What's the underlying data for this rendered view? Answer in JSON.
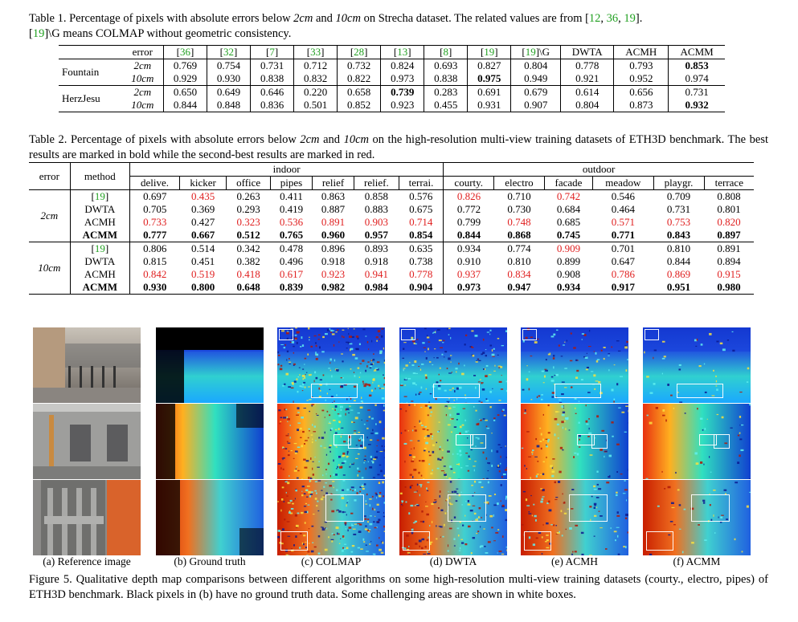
{
  "table1": {
    "caption_prefix": "Table 1. Percentage of pixels with absolute errors below ",
    "caption_u1": "2cm",
    "caption_and": " and ",
    "caption_u2": "10cm",
    "caption_mid": " on Strecha dataset. The related values are from [",
    "cite_a": "12",
    "cite_b": "36",
    "cite_c": "19",
    "caption_end": "].",
    "caption_line2_cite": "19",
    "caption_line2": "]\\G means COLMAP without geometric consistency.",
    "header_error": "error",
    "headers": [
      "36",
      "32",
      "7",
      "33",
      "28",
      "13",
      "8",
      "19",
      "19\\G",
      "DWTA",
      "ACMH",
      "ACMM"
    ],
    "rows": [
      {
        "dataset": "Fountain",
        "error": "2cm",
        "values": [
          "0.769",
          "0.754",
          "0.731",
          "0.712",
          "0.732",
          "0.824",
          "0.693",
          "0.827",
          "0.804",
          "0.778",
          "0.793",
          "0.853"
        ]
      },
      {
        "dataset": "",
        "error": "10cm",
        "values": [
          "0.929",
          "0.930",
          "0.838",
          "0.832",
          "0.822",
          "0.973",
          "0.838",
          "0.975",
          "0.949",
          "0.921",
          "0.952",
          "0.974"
        ]
      },
      {
        "dataset": "HerzJesu",
        "error": "2cm",
        "values": [
          "0.650",
          "0.649",
          "0.646",
          "0.220",
          "0.658",
          "0.739",
          "0.283",
          "0.691",
          "0.679",
          "0.614",
          "0.656",
          "0.731"
        ]
      },
      {
        "dataset": "",
        "error": "10cm",
        "values": [
          "0.844",
          "0.848",
          "0.836",
          "0.501",
          "0.852",
          "0.923",
          "0.455",
          "0.931",
          "0.907",
          "0.804",
          "0.873",
          "0.932"
        ]
      }
    ]
  },
  "table2": {
    "caption_a": "Table 2. Percentage of pixels with absolute errors below ",
    "caption_u1": "2cm",
    "caption_and": " and ",
    "caption_u2": "10cm",
    "caption_b": " on the high-resolution multi-view training datasets of ETH3D benchmark. The best results are marked in bold while the second-best results are marked in red.",
    "col_error": "error",
    "col_method": "method",
    "group_indoor": "indoor",
    "group_outdoor": "outdoor",
    "datasets": [
      "delive.",
      "kicker",
      "office",
      "pipes",
      "relief",
      "relief.",
      "terrai.",
      "courty.",
      "electro",
      "facade",
      "meadow",
      "playgr.",
      "terrace"
    ],
    "groups": [
      {
        "error": "2cm",
        "rows": [
          {
            "method": "[19]",
            "values": [
              "0.697",
              "0.435",
              "0.263",
              "0.411",
              "0.863",
              "0.858",
              "0.576",
              "0.826",
              "0.710",
              "0.742",
              "0.546",
              "0.709",
              "0.808"
            ]
          },
          {
            "method": "DWTA",
            "values": [
              "0.705",
              "0.369",
              "0.293",
              "0.419",
              "0.887",
              "0.883",
              "0.675",
              "0.772",
              "0.730",
              "0.684",
              "0.464",
              "0.731",
              "0.801"
            ]
          },
          {
            "method": "ACMH",
            "values": [
              "0.733",
              "0.427",
              "0.323",
              "0.536",
              "0.891",
              "0.903",
              "0.714",
              "0.799",
              "0.748",
              "0.685",
              "0.571",
              "0.753",
              "0.820"
            ]
          },
          {
            "method": "ACMM",
            "values": [
              "0.777",
              "0.667",
              "0.512",
              "0.765",
              "0.960",
              "0.957",
              "0.854",
              "0.844",
              "0.868",
              "0.745",
              "0.771",
              "0.843",
              "0.897"
            ]
          }
        ]
      },
      {
        "error": "10cm",
        "rows": [
          {
            "method": "[19]",
            "values": [
              "0.806",
              "0.514",
              "0.342",
              "0.478",
              "0.896",
              "0.893",
              "0.635",
              "0.934",
              "0.774",
              "0.909",
              "0.701",
              "0.810",
              "0.891"
            ]
          },
          {
            "method": "DWTA",
            "values": [
              "0.815",
              "0.451",
              "0.382",
              "0.496",
              "0.918",
              "0.918",
              "0.738",
              "0.910",
              "0.810",
              "0.899",
              "0.647",
              "0.844",
              "0.894"
            ]
          },
          {
            "method": "ACMH",
            "values": [
              "0.842",
              "0.519",
              "0.418",
              "0.617",
              "0.923",
              "0.941",
              "0.778",
              "0.937",
              "0.834",
              "0.908",
              "0.786",
              "0.869",
              "0.915"
            ]
          },
          {
            "method": "ACMM",
            "values": [
              "0.930",
              "0.800",
              "0.648",
              "0.839",
              "0.982",
              "0.984",
              "0.904",
              "0.973",
              "0.947",
              "0.934",
              "0.917",
              "0.951",
              "0.980"
            ]
          }
        ]
      }
    ]
  },
  "figure": {
    "subcaptions": [
      "(a) Reference image",
      "(b) Ground truth",
      "(c) COLMAP",
      "(d) DWTA",
      "(e) ACMH",
      "(f) ACMM"
    ],
    "caption": "Figure 5. Qualitative depth map comparisons between different algorithms on some high-resolution multi-view training datasets (courty., electro, pipes) of ETH3D benchmark. Black pixels in (b) have no ground truth data. Some challenging areas are shown in white boxes."
  },
  "colors": {
    "citation": "#22a022",
    "second_best": "#e02020",
    "depth_near": "#c81e00",
    "depth_mid": "#30d0d0",
    "depth_far": "#1030c8"
  }
}
